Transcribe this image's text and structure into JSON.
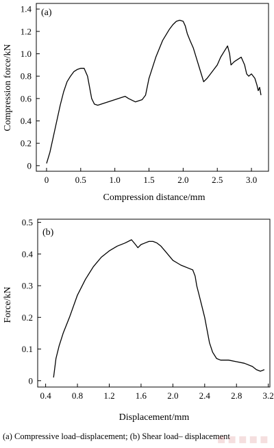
{
  "chart_data": [
    {
      "type": "line",
      "panel_label": "(a)",
      "xlabel": "Compression distance/mm",
      "ylabel": "Compression force/kN",
      "xlim": [
        -0.15,
        3.25
      ],
      "ylim": [
        -0.05,
        1.45
      ],
      "xticks": [
        0,
        0.5,
        1.0,
        1.5,
        2.0,
        2.5,
        3.0
      ],
      "xtick_labels": [
        "0",
        "0.5",
        "1.0",
        "1.5",
        "2.0",
        "2.5",
        "3.0"
      ],
      "yticks": [
        0,
        0.2,
        0.4,
        0.6,
        0.8,
        1.0,
        1.2,
        1.4
      ],
      "ytick_labels": [
        "0",
        "0.2",
        "0.4",
        "0.6",
        "0.8",
        "1.0",
        "1.2",
        "1.4"
      ],
      "grid": false,
      "series": [
        {
          "x": [
            0.0,
            0.05,
            0.1,
            0.15,
            0.2,
            0.25,
            0.3,
            0.35,
            0.4,
            0.45,
            0.5,
            0.55,
            0.6,
            0.63,
            0.66,
            0.7,
            0.75,
            0.8,
            0.85,
            0.9,
            1.0,
            1.1,
            1.15,
            1.2,
            1.3,
            1.4,
            1.45,
            1.5,
            1.6,
            1.7,
            1.8,
            1.85,
            1.9,
            1.95,
            2.0,
            2.03,
            2.06,
            2.1,
            2.15,
            2.2,
            2.25,
            2.3,
            2.35,
            2.4,
            2.45,
            2.5,
            2.55,
            2.6,
            2.65,
            2.68,
            2.7,
            2.75,
            2.8,
            2.85,
            2.9,
            2.93,
            2.96,
            3.0,
            3.05,
            3.08,
            3.1,
            3.12,
            3.14
          ],
          "y": [
            0.02,
            0.12,
            0.26,
            0.4,
            0.54,
            0.66,
            0.75,
            0.8,
            0.84,
            0.86,
            0.87,
            0.87,
            0.8,
            0.7,
            0.6,
            0.55,
            0.54,
            0.55,
            0.56,
            0.57,
            0.59,
            0.61,
            0.62,
            0.6,
            0.57,
            0.59,
            0.63,
            0.78,
            0.97,
            1.12,
            1.22,
            1.26,
            1.29,
            1.3,
            1.29,
            1.25,
            1.18,
            1.12,
            1.05,
            0.95,
            0.85,
            0.75,
            0.78,
            0.82,
            0.86,
            0.9,
            0.97,
            1.02,
            1.07,
            1.0,
            0.9,
            0.93,
            0.95,
            0.97,
            0.9,
            0.82,
            0.8,
            0.82,
            0.78,
            0.72,
            0.67,
            0.7,
            0.63
          ]
        }
      ]
    },
    {
      "type": "line",
      "panel_label": "(b)",
      "xlabel": "Displacement/mm",
      "ylabel": "Force/kN",
      "xlim": [
        0.3,
        3.22
      ],
      "ylim": [
        -0.02,
        0.51
      ],
      "xticks": [
        0.4,
        0.8,
        1.2,
        1.6,
        2.0,
        2.4,
        2.8,
        3.2
      ],
      "xtick_labels": [
        "0.4",
        "0.8",
        "1.2",
        "1.6",
        "2.0",
        "2.4",
        "2.8",
        "3.2"
      ],
      "yticks": [
        0,
        0.1,
        0.2,
        0.3,
        0.4,
        0.5
      ],
      "ytick_labels": [
        "0",
        "0.1",
        "0.2",
        "0.3",
        "0.4",
        "0.5"
      ],
      "grid": false,
      "series": [
        {
          "x": [
            0.5,
            0.53,
            0.57,
            0.62,
            0.7,
            0.8,
            0.9,
            1.0,
            1.1,
            1.2,
            1.3,
            1.4,
            1.48,
            1.53,
            1.56,
            1.6,
            1.65,
            1.7,
            1.75,
            1.8,
            1.85,
            1.9,
            2.0,
            2.1,
            2.2,
            2.25,
            2.28,
            2.3,
            2.33,
            2.36,
            2.4,
            2.43,
            2.46,
            2.5,
            2.55,
            2.6,
            2.7,
            2.8,
            2.9,
            3.0,
            3.05,
            3.1,
            3.15
          ],
          "y": [
            0.01,
            0.07,
            0.11,
            0.15,
            0.2,
            0.27,
            0.32,
            0.36,
            0.39,
            0.41,
            0.425,
            0.435,
            0.445,
            0.43,
            0.42,
            0.43,
            0.435,
            0.44,
            0.44,
            0.435,
            0.425,
            0.41,
            0.38,
            0.365,
            0.355,
            0.35,
            0.33,
            0.3,
            0.27,
            0.24,
            0.2,
            0.16,
            0.12,
            0.09,
            0.07,
            0.065,
            0.065,
            0.06,
            0.055,
            0.045,
            0.035,
            0.03,
            0.035
          ]
        }
      ]
    }
  ],
  "caption": "(a) Compressive load–displacement; (b) Shear load– displacement"
}
